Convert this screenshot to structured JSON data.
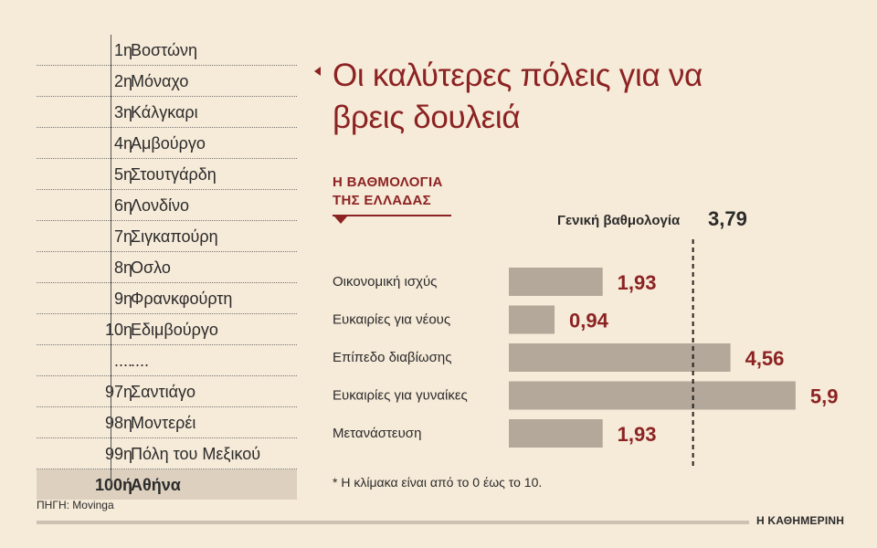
{
  "ranking": [
    {
      "rank": "1η",
      "city": "Βοστώνη"
    },
    {
      "rank": "2η",
      "city": "Μόναχο"
    },
    {
      "rank": "3η",
      "city": "Κάλγκαρι"
    },
    {
      "rank": "4η",
      "city": "Αμβούργο"
    },
    {
      "rank": "5η",
      "city": "Στουτγάρδη"
    },
    {
      "rank": "6η",
      "city": "Λονδίνο"
    },
    {
      "rank": "7η",
      "city": "Σιγκαπούρη"
    },
    {
      "rank": "8η",
      "city": "Οσλο"
    },
    {
      "rank": "9η",
      "city": "Φρανκφούρτη"
    },
    {
      "rank": "10η",
      "city": "Εδιμβούργο"
    },
    {
      "rank": "....",
      "city": "...."
    },
    {
      "rank": "97η",
      "city": "Σαντιάγο"
    },
    {
      "rank": "98η",
      "city": "Μοντερέι"
    },
    {
      "rank": "99η",
      "city": "Πόλη του Μεξικού"
    },
    {
      "rank": "100ή",
      "city": "Αθήνα"
    }
  ],
  "title": "Οι καλύτερες πόλεις για να βρεις δουλειά",
  "subtitle_line1": "Η ΒΑΘΜΟΛΟΓΙΑ",
  "subtitle_line2": "ΤΗΣ ΕΛΛΑΔΑΣ",
  "general_score_label": "Γενική βαθμολογία",
  "general_score_value": "3,79",
  "footnote": "* Η κλίμακα είναι από το 0 έως το 10.",
  "source": "ΠΗΓΗ: Movinga",
  "brand": "Η ΚΑΘΗΜΕΡΙΝΗ",
  "colors": {
    "accent": "#8c2323",
    "bar": "#b3a899",
    "background": "#f6ead8",
    "highlight": "#ddd0be"
  },
  "chart_data": {
    "type": "bar",
    "orientation": "horizontal",
    "categories": [
      "Οικονομική ισχύς",
      "Ευκαιρίες για νέους",
      "Επίπεδο διαβίωσης",
      "Ευκαιρίες για γυναίκες",
      "Μετανάστευση"
    ],
    "values": [
      1.93,
      0.94,
      4.56,
      5.9,
      1.93
    ],
    "value_labels": [
      "1,93",
      "0,94",
      "4,56",
      "5,9",
      "1,93"
    ],
    "reference_line": {
      "value": 3.79,
      "label": "Γενική βαθμολογία",
      "style": "dashed"
    },
    "xlim": [
      0,
      10
    ],
    "grid": false
  }
}
